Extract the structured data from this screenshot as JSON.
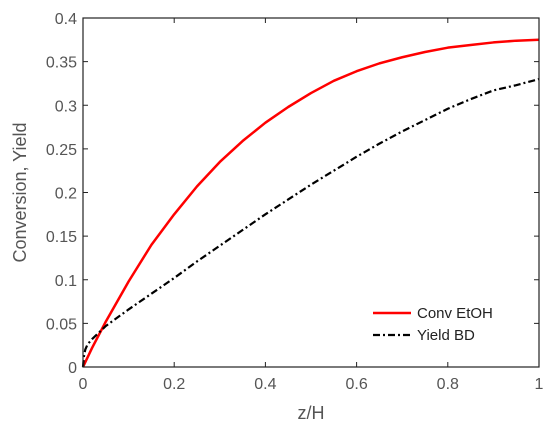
{
  "chart_data": {
    "type": "line",
    "title": "",
    "xlabel": "z/H",
    "ylabel": "Conversion, Yield",
    "xlim": [
      0,
      1
    ],
    "ylim": [
      0,
      0.4
    ],
    "xticks": [
      0,
      0.2,
      0.4,
      0.6,
      0.8,
      1
    ],
    "xtick_labels": [
      "0",
      "0.2",
      "0.4",
      "0.6",
      "0.8",
      "1"
    ],
    "yticks": [
      0,
      0.05,
      0.1,
      0.15,
      0.2,
      0.25,
      0.3,
      0.35,
      0.4
    ],
    "ytick_labels": [
      "0",
      "0.05",
      "0.1",
      "0.15",
      "0.2",
      "0.25",
      "0.3",
      "0.35",
      "0.4"
    ],
    "grid": false,
    "legend_position": "bottom-right",
    "series": [
      {
        "name": "Conv EtOH",
        "color": "#ff0000",
        "style": "solid",
        "x": [
          0,
          0.02,
          0.05,
          0.1,
          0.15,
          0.2,
          0.25,
          0.3,
          0.35,
          0.4,
          0.45,
          0.5,
          0.55,
          0.6,
          0.65,
          0.7,
          0.75,
          0.8,
          0.85,
          0.9,
          0.95,
          1
        ],
        "y": [
          0,
          0.022,
          0.052,
          0.098,
          0.14,
          0.175,
          0.207,
          0.235,
          0.259,
          0.28,
          0.298,
          0.314,
          0.328,
          0.339,
          0.348,
          0.355,
          0.361,
          0.366,
          0.369,
          0.372,
          0.374,
          0.375
        ]
      },
      {
        "name": "Yield BD",
        "color": "#000000",
        "style": "dashdot",
        "x": [
          0,
          0.002,
          0.005,
          0.01,
          0.02,
          0.03,
          0.05,
          0.1,
          0.15,
          0.2,
          0.25,
          0.3,
          0.35,
          0.4,
          0.45,
          0.5,
          0.55,
          0.6,
          0.65,
          0.7,
          0.75,
          0.8,
          0.85,
          0.9,
          0.95,
          1
        ],
        "y": [
          0,
          0.012,
          0.02,
          0.026,
          0.032,
          0.037,
          0.047,
          0.066,
          0.084,
          0.102,
          0.121,
          0.139,
          0.157,
          0.175,
          0.192,
          0.209,
          0.225,
          0.241,
          0.256,
          0.27,
          0.283,
          0.296,
          0.307,
          0.317,
          0.323,
          0.33
        ]
      }
    ]
  }
}
